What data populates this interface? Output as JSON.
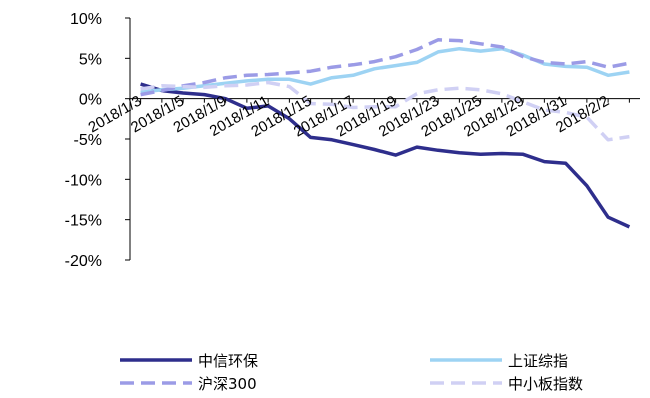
{
  "chart_data": {
    "type": "line",
    "title": "",
    "xlabel": "",
    "ylabel": "",
    "ylim": [
      -20,
      10
    ],
    "y_ticks": [
      "10%",
      "5%",
      "0%",
      "-5%",
      "-10%",
      "-15%",
      "-20%"
    ],
    "y_tick_values": [
      10,
      5,
      0,
      -5,
      -10,
      -15,
      -20
    ],
    "x": [
      "2018/1/3",
      "2018/1/4",
      "2018/1/5",
      "2018/1/8",
      "2018/1/9",
      "2018/1/10",
      "2018/1/11",
      "2018/1/12",
      "2018/1/15",
      "2018/1/16",
      "2018/1/17",
      "2018/1/18",
      "2018/1/19",
      "2018/1/22",
      "2018/1/23",
      "2018/1/24",
      "2018/1/25",
      "2018/1/26",
      "2018/1/29",
      "2018/1/30",
      "2018/1/31",
      "2018/2/1",
      "2018/2/2",
      "2018/2/5"
    ],
    "x_tick_labels": [
      "2018/1/3",
      "2018/1/5",
      "2018/1/9",
      "2018/1/11",
      "2018/1/15",
      "2018/1/17",
      "2018/1/19",
      "2018/1/23",
      "2018/1/25",
      "2018/1/29",
      "2018/1/31",
      "2018/2/2"
    ],
    "grid": false,
    "legend_position": "bottom",
    "series": [
      {
        "name": "中信环保",
        "color": "#2e2e8c",
        "dash": "solid",
        "values": [
          1.8,
          1.0,
          0.7,
          0.5,
          0.0,
          -1.2,
          -0.9,
          -2.5,
          -4.8,
          -5.1,
          -5.7,
          -6.3,
          -7.0,
          -6.0,
          -6.4,
          -6.7,
          -6.9,
          -6.8,
          -6.9,
          -7.8,
          -8.0,
          -10.8,
          -14.7,
          -15.9
        ]
      },
      {
        "name": "上证综指",
        "color": "#9dd3f3",
        "dash": "solid",
        "values": [
          0.8,
          1.1,
          1.3,
          1.6,
          1.9,
          2.2,
          2.4,
          2.4,
          1.8,
          2.6,
          2.9,
          3.7,
          4.1,
          4.5,
          5.8,
          6.2,
          5.9,
          6.2,
          5.4,
          4.3,
          4.0,
          3.9,
          2.9,
          3.3
        ]
      },
      {
        "name": "沪深300",
        "color": "#9b9be6",
        "dash": "dashed",
        "values": [
          0.5,
          1.0,
          1.6,
          2.0,
          2.6,
          2.9,
          3.0,
          3.2,
          3.4,
          3.9,
          4.2,
          4.6,
          5.2,
          6.1,
          7.3,
          7.2,
          6.8,
          6.4,
          5.2,
          4.5,
          4.3,
          4.6,
          3.9,
          4.4
        ]
      },
      {
        "name": "中小板指数",
        "color": "#d0d0f4",
        "dash": "dashed",
        "values": [
          1.2,
          1.6,
          1.5,
          1.4,
          1.6,
          1.7,
          2.0,
          1.5,
          -0.6,
          -0.7,
          -1.1,
          -1.0,
          -1.0,
          0.6,
          1.1,
          1.3,
          1.1,
          0.6,
          -0.4,
          -1.4,
          -1.7,
          -2.3,
          -5.1,
          -4.7
        ]
      }
    ]
  }
}
